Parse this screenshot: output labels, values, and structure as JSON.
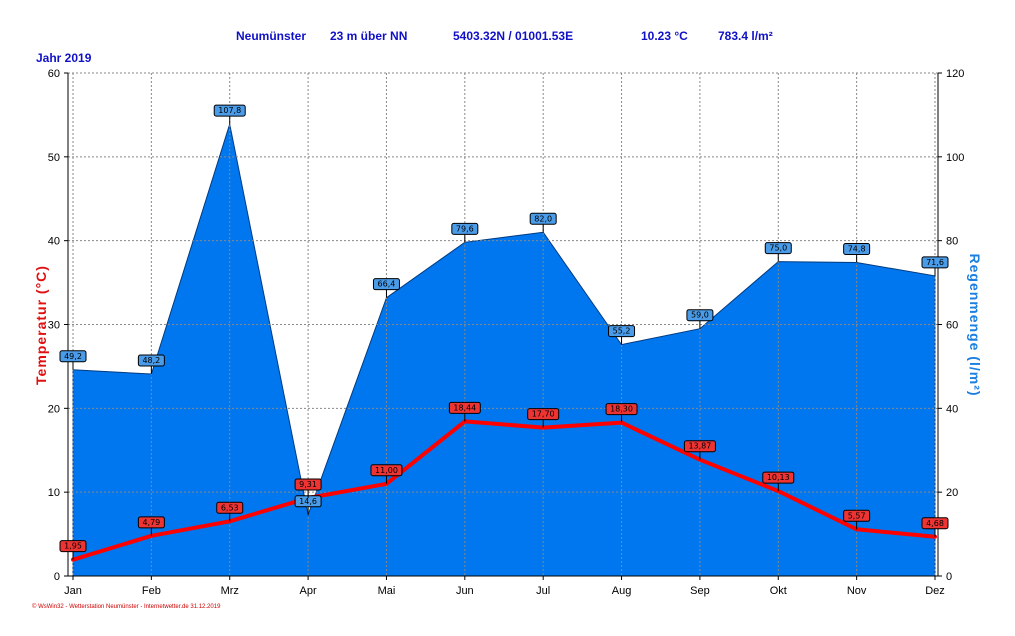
{
  "header": {
    "station": "Neumünster",
    "altitude": "23 m über NN",
    "coords": "5403.32N / 01001.53E",
    "mean_temp": "10.23 °C",
    "precip_total": "783.4 l/m²"
  },
  "year_label": "Jahr 2019",
  "footer_text": "© WsWin32 - Wetterstation Neumünster - Internetwetter.de 31.12.2019",
  "colors": {
    "area": "#0077ee",
    "temp_line": "#ff0000",
    "temp_label_bg": "#ee3333",
    "rain_label_bg": "#4a9be8",
    "header_text": "#1010c8",
    "y2_label": "#1a7fe0"
  },
  "chart_data": {
    "type": "line",
    "categories": [
      "Jan",
      "Feb",
      "Mrz",
      "Apr",
      "Mai",
      "Jun",
      "Jul",
      "Aug",
      "Sep",
      "Okt",
      "Nov",
      "Dez"
    ],
    "series": [
      {
        "name": "Temperatur",
        "type": "line",
        "axis": "left",
        "values": [
          1.95,
          4.79,
          6.53,
          9.31,
          11.0,
          18.44,
          17.7,
          18.3,
          13.87,
          10.13,
          5.57,
          4.68
        ],
        "labels": [
          "1,95",
          "4,79",
          "6,53",
          "9,31",
          "11,00",
          "18,44",
          "17,70",
          "18,30",
          "13,87",
          "10,13",
          "5,57",
          "4,68"
        ]
      },
      {
        "name": "Regenmenge",
        "type": "area",
        "axis": "right",
        "values": [
          49.2,
          48.2,
          107.8,
          14.6,
          66.4,
          79.6,
          82.0,
          55.2,
          59.0,
          75.0,
          74.8,
          71.6
        ],
        "labels": [
          "49,2",
          "48,2",
          "107,8",
          "14,6",
          "66,4",
          "79,6",
          "82,0",
          "55,2",
          "59,0",
          "75,0",
          "74,8",
          "71,6"
        ]
      }
    ],
    "ylabel": "Temperatur (°C)",
    "y2label": "Regenmenge (l/m²)",
    "ylim": [
      0,
      60
    ],
    "y2lim": [
      0,
      120
    ],
    "yticks": [
      0,
      10,
      20,
      30,
      40,
      50,
      60
    ],
    "y2ticks": [
      0,
      20,
      40,
      60,
      80,
      100,
      120
    ],
    "grid": true
  }
}
